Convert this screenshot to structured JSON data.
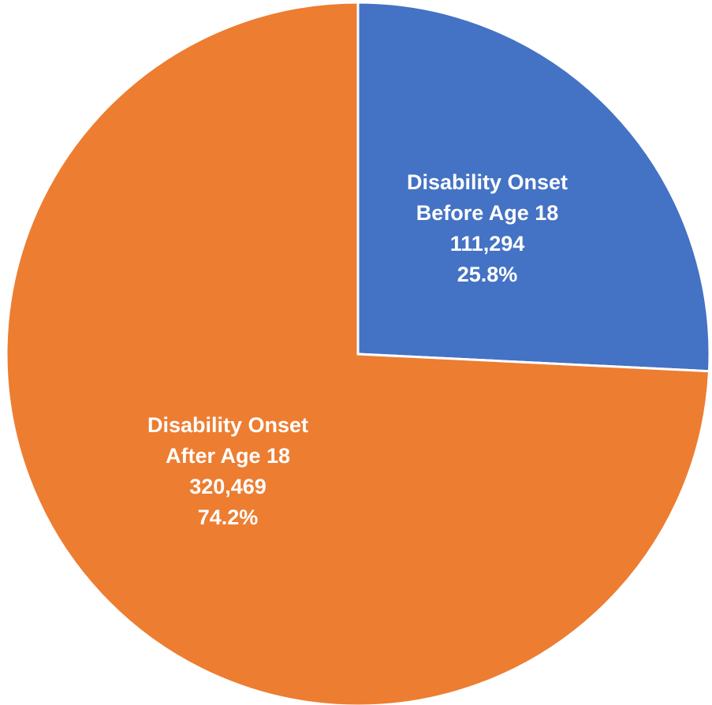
{
  "chart_data": {
    "type": "pie",
    "title": "",
    "slices": [
      {
        "label_lines": [
          "Disability Onset",
          "Before Age 18"
        ],
        "value": 111294,
        "value_text": "111,294",
        "percent_text": "25.8%",
        "color": "#4472C4"
      },
      {
        "label_lines": [
          "Disability Onset",
          "After Age 18"
        ],
        "value": 320469,
        "value_text": "320,469",
        "percent_text": "74.2%",
        "color": "#ED7D31"
      }
    ],
    "start_angle": "12 o'clock",
    "direction": "clockwise",
    "legend": "none",
    "background": "#FFFFFF"
  }
}
